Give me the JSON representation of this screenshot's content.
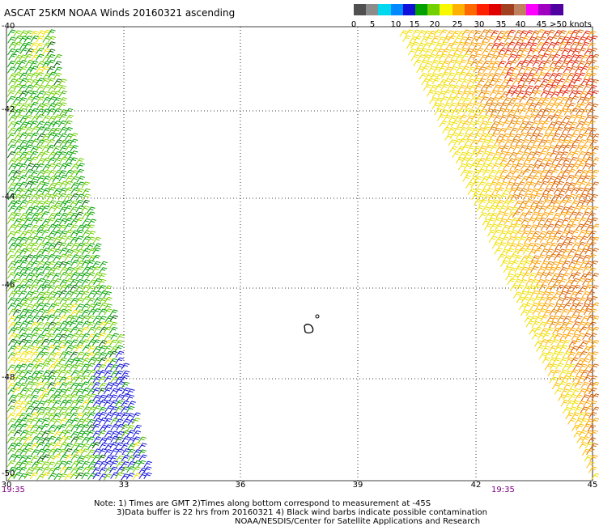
{
  "title": "ASCAT 25KM NOAA Winds 20160321 ascending",
  "colorbar": {
    "colors": [
      "#505050",
      "#8c8c8c",
      "#00d8f0",
      "#0088ff",
      "#1010d8",
      "#00a000",
      "#70d000",
      "#f8f800",
      "#ffb000",
      "#ff6800",
      "#ff2000",
      "#e00000",
      "#a04020",
      "#c08060",
      "#ff00ff",
      "#a000c0",
      "#5000a0"
    ],
    "labels": [
      "0",
      "5",
      "10",
      "15",
      "20",
      "25",
      "30",
      "35",
      "40",
      "45",
      ">50 knots"
    ]
  },
  "axes": {
    "x_ticks": [
      "30",
      "33",
      "36",
      "39",
      "42",
      "45"
    ],
    "y_ticks": [
      "-40",
      "-42",
      "-44",
      "-46",
      "-48",
      "-50"
    ]
  },
  "times": {
    "left": "19:35",
    "right": "19:35"
  },
  "notes": [
    "Note: 1) Times are GMT 2)Times along bottom correspond to measurement at -45S",
    "3)Data buffer is 22 hrs from 20160321 4) Black wind barbs indicate possible contamination",
    "NOAA/NESDIS/Center for Satellite Applications and Research"
  ]
}
